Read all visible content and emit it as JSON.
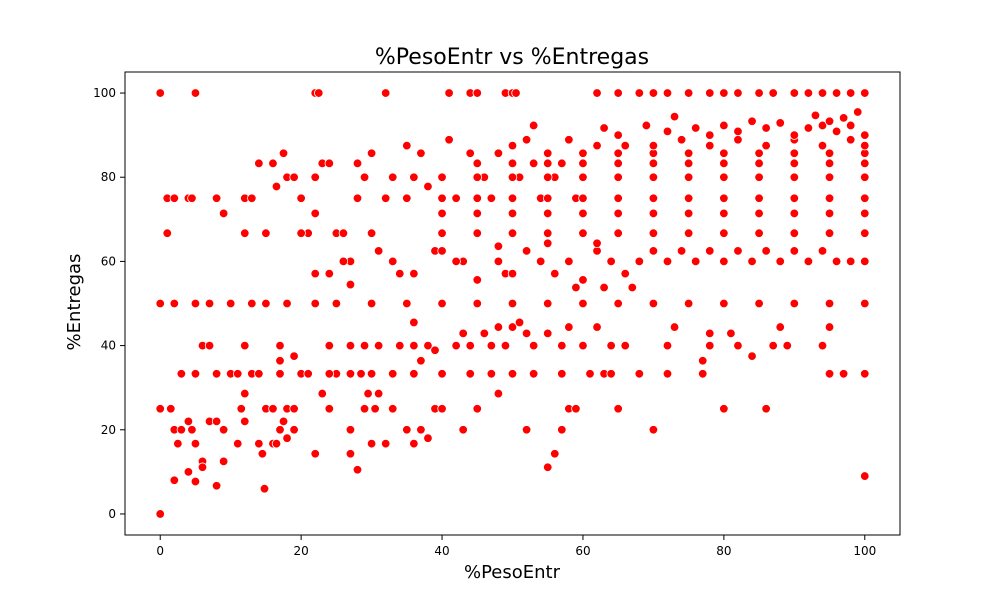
{
  "chart_data": {
    "type": "scatter",
    "title": "%PesoEntr vs %Entregas",
    "xlabel": "%PesoEntr",
    "ylabel": "%Entregas",
    "xlim": [
      -5,
      105
    ],
    "ylim": [
      -5,
      105
    ],
    "xticks": [
      0,
      20,
      40,
      60,
      80,
      100
    ],
    "yticks": [
      0,
      20,
      40,
      60,
      80,
      100
    ],
    "grid": false,
    "marker_color": "#ff0000",
    "marker_edge_color": "#ffffff",
    "points": [
      [
        0,
        0
      ],
      [
        0,
        100
      ],
      [
        5,
        100
      ],
      [
        0,
        25
      ],
      [
        1.5,
        25
      ],
      [
        2,
        20
      ],
      [
        2,
        8
      ],
      [
        3,
        20
      ],
      [
        2.5,
        16.7
      ],
      [
        4,
        10
      ],
      [
        4,
        22
      ],
      [
        4.5,
        20
      ],
      [
        5,
        16.7
      ],
      [
        5,
        7.7
      ],
      [
        6,
        12.5
      ],
      [
        6,
        11.1
      ],
      [
        7,
        22
      ],
      [
        8,
        6.7
      ],
      [
        8,
        22
      ],
      [
        9,
        20
      ],
      [
        9,
        12.5
      ],
      [
        10,
        33.3
      ],
      [
        11,
        16.7
      ],
      [
        11.5,
        25
      ],
      [
        12,
        22
      ],
      [
        12,
        28.6
      ],
      [
        13,
        33.3
      ],
      [
        14,
        16.7
      ],
      [
        14.5,
        14.3
      ],
      [
        14.8,
        6
      ],
      [
        15,
        25
      ],
      [
        16,
        25
      ],
      [
        16,
        16.7
      ],
      [
        16.5,
        16.7
      ],
      [
        17,
        20
      ],
      [
        17.5,
        22
      ],
      [
        18,
        25
      ],
      [
        18,
        18
      ],
      [
        19,
        25
      ],
      [
        19,
        20
      ],
      [
        20,
        33.3
      ],
      [
        22,
        14.3
      ],
      [
        23,
        28.6
      ],
      [
        24,
        25
      ],
      [
        25,
        33.3
      ],
      [
        27,
        20
      ],
      [
        27,
        14.3
      ],
      [
        28,
        10.5
      ],
      [
        28.5,
        33.3
      ],
      [
        29,
        25
      ],
      [
        29.5,
        28.6
      ],
      [
        30,
        16.7
      ],
      [
        30.5,
        25
      ],
      [
        31,
        28.6
      ],
      [
        32,
        16.7
      ],
      [
        33,
        25
      ],
      [
        35,
        20
      ],
      [
        36,
        16.7
      ],
      [
        37,
        20
      ],
      [
        38,
        18
      ],
      [
        39,
        25
      ],
      [
        40,
        25
      ],
      [
        43,
        20
      ],
      [
        45,
        25
      ],
      [
        48,
        28.6
      ],
      [
        50,
        33.3
      ],
      [
        52,
        20
      ],
      [
        55,
        11.1
      ],
      [
        57,
        20
      ],
      [
        56,
        14.3
      ],
      [
        58,
        25
      ],
      [
        59,
        25
      ],
      [
        63,
        33.3
      ],
      [
        65,
        25
      ],
      [
        70,
        20
      ],
      [
        80,
        25
      ],
      [
        86,
        25
      ],
      [
        95,
        33.3
      ],
      [
        97,
        33.3
      ],
      [
        100,
        33.3
      ],
      [
        100,
        9
      ],
      [
        1,
        75
      ],
      [
        1,
        66.7
      ],
      [
        2,
        75
      ],
      [
        4,
        75
      ],
      [
        4.5,
        75
      ],
      [
        8,
        75
      ],
      [
        9,
        71.4
      ],
      [
        12,
        75
      ],
      [
        12,
        66.7
      ],
      [
        13,
        75
      ],
      [
        14,
        83.3
      ],
      [
        15,
        66.7
      ],
      [
        16,
        83.3
      ],
      [
        16.5,
        77.8
      ],
      [
        17.5,
        85.7
      ],
      [
        18,
        80
      ],
      [
        19,
        80
      ],
      [
        20,
        75
      ],
      [
        21,
        66.7
      ],
      [
        22,
        80
      ],
      [
        22,
        71.4
      ],
      [
        22,
        57.1
      ],
      [
        23,
        83.3
      ],
      [
        24,
        83.3
      ],
      [
        24,
        57.1
      ],
      [
        25,
        66.7
      ],
      [
        26,
        66.7
      ],
      [
        27,
        60
      ],
      [
        27,
        54.5
      ],
      [
        28,
        83.3
      ],
      [
        28,
        75
      ],
      [
        29,
        80
      ],
      [
        30,
        85.7
      ],
      [
        30,
        66.7
      ],
      [
        31,
        62.5
      ],
      [
        32,
        75
      ],
      [
        33,
        80
      ],
      [
        34,
        57.1
      ],
      [
        35,
        87.5
      ],
      [
        36,
        80
      ],
      [
        37,
        85.7
      ],
      [
        38,
        77.8
      ],
      [
        39,
        62.5
      ],
      [
        40,
        80
      ],
      [
        41,
        88.9
      ],
      [
        42,
        75
      ],
      [
        43,
        60
      ],
      [
        44,
        85.7
      ],
      [
        45,
        83.3
      ],
      [
        46,
        80
      ],
      [
        47,
        75
      ],
      [
        48,
        85.7
      ],
      [
        49,
        57.1
      ],
      [
        50,
        87.5
      ],
      [
        51,
        80
      ],
      [
        52,
        88.9
      ],
      [
        53,
        83.3
      ],
      [
        54,
        75
      ],
      [
        55,
        85.7
      ],
      [
        56,
        80
      ],
      [
        57,
        83.3
      ],
      [
        58,
        88.9
      ],
      [
        59,
        75
      ],
      [
        60,
        80
      ],
      [
        0,
        50
      ],
      [
        2,
        50
      ],
      [
        5,
        50
      ],
      [
        7,
        50
      ],
      [
        10,
        50
      ],
      [
        13,
        50
      ],
      [
        15,
        50
      ],
      [
        18,
        50
      ],
      [
        22,
        50
      ],
      [
        25,
        50
      ],
      [
        30,
        50
      ],
      [
        35,
        50
      ],
      [
        40,
        50
      ],
      [
        45,
        50
      ],
      [
        50,
        50
      ],
      [
        55,
        50
      ],
      [
        60,
        50
      ],
      [
        65,
        50
      ],
      [
        70,
        50
      ],
      [
        75,
        50
      ],
      [
        80,
        50
      ],
      [
        85,
        50
      ],
      [
        90,
        50
      ],
      [
        95,
        50
      ],
      [
        100,
        50
      ],
      [
        6,
        40
      ],
      [
        7,
        40
      ],
      [
        12,
        40
      ],
      [
        17,
        40
      ],
      [
        19,
        37.5
      ],
      [
        24,
        40
      ],
      [
        27,
        40
      ],
      [
        29,
        40
      ],
      [
        31,
        40
      ],
      [
        34,
        40
      ],
      [
        36,
        40
      ],
      [
        38,
        40
      ],
      [
        39,
        38.9
      ],
      [
        42,
        40
      ],
      [
        44,
        40
      ],
      [
        47,
        40
      ],
      [
        49,
        40
      ],
      [
        53,
        40
      ],
      [
        57,
        40
      ],
      [
        60,
        40
      ],
      [
        64,
        40
      ],
      [
        66,
        40
      ],
      [
        72,
        40
      ],
      [
        78,
        40
      ],
      [
        82,
        40
      ],
      [
        87,
        40
      ],
      [
        89,
        40
      ],
      [
        94,
        40
      ],
      [
        17,
        36.4
      ],
      [
        37,
        36.4
      ],
      [
        43,
        42.9
      ],
      [
        46,
        42.9
      ],
      [
        48,
        44.4
      ],
      [
        50,
        44.4
      ],
      [
        52,
        42.9
      ],
      [
        55,
        42.9
      ],
      [
        58,
        44.4
      ],
      [
        62,
        44.4
      ],
      [
        73,
        44.4
      ],
      [
        78,
        42.9
      ],
      [
        81,
        42.9
      ],
      [
        88,
        44.4
      ],
      [
        95,
        44.4
      ],
      [
        36,
        45.5
      ],
      [
        51,
        45.5
      ],
      [
        77,
        36.4
      ],
      [
        84,
        37.5
      ],
      [
        3,
        33.3
      ],
      [
        5,
        33.3
      ],
      [
        8,
        33.3
      ],
      [
        11,
        33.3
      ],
      [
        14,
        33.3
      ],
      [
        17,
        33.3
      ],
      [
        21,
        33.3
      ],
      [
        24,
        33.3
      ],
      [
        27,
        33.3
      ],
      [
        30,
        33.3
      ],
      [
        33,
        33.3
      ],
      [
        36,
        33.3
      ],
      [
        40,
        33.3
      ],
      [
        44,
        33.3
      ],
      [
        47,
        33.3
      ],
      [
        50,
        33.3
      ],
      [
        53,
        33.3
      ],
      [
        57,
        33.3
      ],
      [
        61,
        33.3
      ],
      [
        64,
        33.3
      ],
      [
        68,
        33.3
      ],
      [
        72,
        33.3
      ],
      [
        77,
        33.3
      ],
      [
        26,
        60
      ],
      [
        33,
        60
      ],
      [
        36,
        57.1
      ],
      [
        40,
        62.5
      ],
      [
        42,
        60
      ],
      [
        45,
        55.6
      ],
      [
        48,
        60
      ],
      [
        50,
        57.1
      ],
      [
        52,
        62.5
      ],
      [
        54,
        60
      ],
      [
        56,
        57.1
      ],
      [
        58,
        60
      ],
      [
        60,
        55.6
      ],
      [
        62,
        62.5
      ],
      [
        64,
        60
      ],
      [
        66,
        57.1
      ],
      [
        68,
        60
      ],
      [
        70,
        62.5
      ],
      [
        72,
        60
      ],
      [
        74,
        62.5
      ],
      [
        76,
        60
      ],
      [
        78,
        62.5
      ],
      [
        80,
        60
      ],
      [
        82,
        62.5
      ],
      [
        84,
        60
      ],
      [
        86,
        62.5
      ],
      [
        88,
        60
      ],
      [
        90,
        62.5
      ],
      [
        92,
        60
      ],
      [
        94,
        62.5
      ],
      [
        96,
        60
      ],
      [
        98,
        60
      ],
      [
        100,
        60
      ],
      [
        63,
        53.8
      ],
      [
        67,
        53.8
      ],
      [
        59,
        53.8
      ],
      [
        48,
        63.6
      ],
      [
        55,
        64.3
      ],
      [
        62,
        64.3
      ],
      [
        20,
        66.7
      ],
      [
        30,
        66.7
      ],
      [
        40,
        66.7
      ],
      [
        45,
        66.7
      ],
      [
        50,
        66.7
      ],
      [
        55,
        66.7
      ],
      [
        60,
        66.7
      ],
      [
        65,
        66.7
      ],
      [
        70,
        66.7
      ],
      [
        75,
        66.7
      ],
      [
        80,
        66.7
      ],
      [
        85,
        66.7
      ],
      [
        90,
        66.7
      ],
      [
        95,
        66.7
      ],
      [
        100,
        66.7
      ],
      [
        40,
        71.4
      ],
      [
        45,
        71.4
      ],
      [
        50,
        71.4
      ],
      [
        55,
        71.4
      ],
      [
        60,
        71.4
      ],
      [
        65,
        71.4
      ],
      [
        70,
        71.4
      ],
      [
        75,
        71.4
      ],
      [
        80,
        71.4
      ],
      [
        85,
        71.4
      ],
      [
        90,
        71.4
      ],
      [
        95,
        71.4
      ],
      [
        100,
        71.4
      ],
      [
        35,
        75
      ],
      [
        40,
        75
      ],
      [
        45,
        75
      ],
      [
        50,
        75
      ],
      [
        55,
        75
      ],
      [
        60,
        75
      ],
      [
        65,
        75
      ],
      [
        70,
        75
      ],
      [
        75,
        75
      ],
      [
        80,
        75
      ],
      [
        85,
        75
      ],
      [
        90,
        75
      ],
      [
        95,
        75
      ],
      [
        100,
        75
      ],
      [
        40,
        80
      ],
      [
        45,
        80
      ],
      [
        50,
        80
      ],
      [
        55,
        80
      ],
      [
        60,
        80
      ],
      [
        65,
        80
      ],
      [
        70,
        80
      ],
      [
        75,
        80
      ],
      [
        80,
        80
      ],
      [
        85,
        80
      ],
      [
        90,
        80
      ],
      [
        95,
        80
      ],
      [
        100,
        80
      ],
      [
        45,
        83.3
      ],
      [
        50,
        83.3
      ],
      [
        55,
        83.3
      ],
      [
        60,
        83.3
      ],
      [
        65,
        83.3
      ],
      [
        70,
        83.3
      ],
      [
        75,
        83.3
      ],
      [
        80,
        83.3
      ],
      [
        85,
        83.3
      ],
      [
        90,
        83.3
      ],
      [
        95,
        83.3
      ],
      [
        100,
        83.3
      ],
      [
        60,
        85.7
      ],
      [
        65,
        85.7
      ],
      [
        70,
        85.7
      ],
      [
        75,
        85.7
      ],
      [
        80,
        85.7
      ],
      [
        85,
        85.7
      ],
      [
        90,
        85.7
      ],
      [
        95,
        85.7
      ],
      [
        100,
        85.7
      ],
      [
        62,
        87.5
      ],
      [
        66,
        87.5
      ],
      [
        70,
        87.5
      ],
      [
        74,
        88.9
      ],
      [
        78,
        87.5
      ],
      [
        82,
        88.9
      ],
      [
        86,
        87.5
      ],
      [
        90,
        88.9
      ],
      [
        94,
        87.5
      ],
      [
        98,
        88.9
      ],
      [
        100,
        87.5
      ],
      [
        65,
        90
      ],
      [
        72,
        90.9
      ],
      [
        78,
        90
      ],
      [
        82,
        90.9
      ],
      [
        86,
        91.7
      ],
      [
        90,
        90
      ],
      [
        92,
        91.7
      ],
      [
        94,
        92.3
      ],
      [
        96,
        90.9
      ],
      [
        98,
        92.3
      ],
      [
        100,
        90
      ],
      [
        99,
        95.5
      ],
      [
        97,
        94.1
      ],
      [
        95,
        93.3
      ],
      [
        93,
        94.7
      ],
      [
        88,
        92.9
      ],
      [
        84,
        93.3
      ],
      [
        80,
        92.3
      ],
      [
        76,
        91.7
      ],
      [
        73,
        94.4
      ],
      [
        69,
        92.3
      ],
      [
        63,
        91.7
      ],
      [
        53,
        92.3
      ],
      [
        62,
        100
      ],
      [
        65,
        100
      ],
      [
        68,
        100
      ],
      [
        70,
        100
      ],
      [
        72,
        100
      ],
      [
        75,
        100
      ],
      [
        78,
        100
      ],
      [
        80,
        100
      ],
      [
        82,
        100
      ],
      [
        85,
        100
      ],
      [
        87,
        100
      ],
      [
        90,
        100
      ],
      [
        92,
        100
      ],
      [
        94,
        100
      ],
      [
        96,
        100
      ],
      [
        98,
        100
      ],
      [
        100,
        100
      ],
      [
        22,
        100
      ],
      [
        22.5,
        100
      ],
      [
        32,
        100
      ],
      [
        41,
        100
      ],
      [
        44,
        100
      ],
      [
        45,
        100
      ],
      [
        49,
        100
      ],
      [
        50,
        100
      ],
      [
        50.5,
        100
      ]
    ]
  }
}
